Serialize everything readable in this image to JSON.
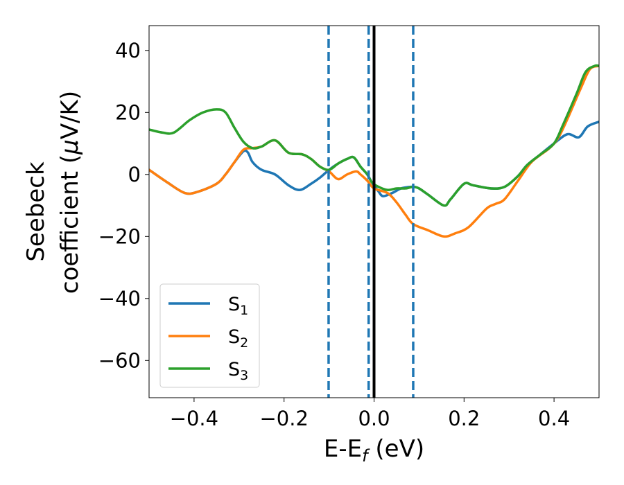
{
  "chart_data": {
    "type": "line",
    "xlabel": "E-E",
    "xlabel_sub": "f",
    "xlabel_unit": " (eV)",
    "ylabel_line1": "Seebeck",
    "ylabel_line2_prefix": "coefficient  (",
    "ylabel_mu": "μ",
    "ylabel_line2_suffix": "V/K)",
    "xlim": [
      -0.5,
      0.5
    ],
    "ylim": [
      -72,
      48
    ],
    "xticks": [
      -0.4,
      -0.2,
      0.0,
      0.2,
      0.4
    ],
    "xtick_labels": [
      "−0.4",
      "−0.2",
      "0.0",
      "0.2",
      "0.4"
    ],
    "yticks": [
      40,
      20,
      0,
      -20,
      -40,
      -60
    ],
    "ytick_labels": [
      "40",
      "20",
      "0",
      "−20",
      "−40",
      "−60"
    ],
    "grid": false,
    "legend_position": "lower-left",
    "vertical_lines": [
      {
        "x": 0.0,
        "style": "solid",
        "color": "#000000"
      },
      {
        "x": -0.101,
        "style": "dashed",
        "color": "#1f77b4"
      },
      {
        "x": -0.012,
        "style": "dashed",
        "color": "#1f77b4"
      },
      {
        "x": 0.087,
        "style": "dashed",
        "color": "#1f77b4"
      }
    ],
    "series": [
      {
        "name": "S",
        "sub": "1",
        "color": "#1f77b4",
        "points": [
          [
            -0.5,
            1.5
          ],
          [
            -0.46,
            -2.5
          ],
          [
            -0.42,
            -6
          ],
          [
            -0.39,
            -5.5
          ],
          [
            -0.35,
            -3
          ],
          [
            -0.33,
            0
          ],
          [
            -0.31,
            4
          ],
          [
            -0.29,
            7.5
          ],
          [
            -0.28,
            7
          ],
          [
            -0.27,
            4
          ],
          [
            -0.25,
            1.5
          ],
          [
            -0.22,
            0
          ],
          [
            -0.19,
            -3.5
          ],
          [
            -0.165,
            -5
          ],
          [
            -0.14,
            -3
          ],
          [
            -0.12,
            -1
          ],
          [
            -0.1,
            1.5
          ],
          [
            -0.08,
            3.5
          ],
          [
            -0.06,
            5
          ],
          [
            -0.045,
            5.5
          ],
          [
            -0.03,
            2.5
          ],
          [
            -0.015,
            0
          ],
          [
            -0.005,
            -2.5
          ],
          [
            0.01,
            -5.5
          ],
          [
            0.02,
            -7
          ],
          [
            0.04,
            -6
          ],
          [
            0.06,
            -4.5
          ],
          [
            0.08,
            -4
          ],
          [
            0.09,
            -4
          ],
          [
            0.1,
            -4.5
          ],
          [
            0.12,
            -6.5
          ],
          [
            0.155,
            -10
          ],
          [
            0.17,
            -8
          ],
          [
            0.2,
            -3
          ],
          [
            0.22,
            -3.5
          ],
          [
            0.26,
            -4.5
          ],
          [
            0.29,
            -4
          ],
          [
            0.32,
            -0.5
          ],
          [
            0.34,
            3
          ],
          [
            0.37,
            6.5
          ],
          [
            0.4,
            10
          ],
          [
            0.43,
            13
          ],
          [
            0.455,
            12
          ],
          [
            0.475,
            15.5
          ],
          [
            0.5,
            17
          ]
        ]
      },
      {
        "name": "S",
        "sub": "2",
        "color": "#ff7f0e",
        "points": [
          [
            -0.5,
            1.5
          ],
          [
            -0.46,
            -2.5
          ],
          [
            -0.42,
            -6
          ],
          [
            -0.39,
            -5.5
          ],
          [
            -0.35,
            -3
          ],
          [
            -0.33,
            0
          ],
          [
            -0.31,
            4
          ],
          [
            -0.29,
            8
          ],
          [
            -0.27,
            8.5
          ],
          [
            -0.25,
            9
          ],
          [
            -0.22,
            11
          ],
          [
            -0.19,
            7
          ],
          [
            -0.16,
            6.5
          ],
          [
            -0.14,
            5
          ],
          [
            -0.12,
            2.5
          ],
          [
            -0.1,
            1
          ],
          [
            -0.08,
            -1.5
          ],
          [
            -0.06,
            0
          ],
          [
            -0.04,
            1
          ],
          [
            -0.03,
            0
          ],
          [
            -0.015,
            -2
          ],
          [
            0.0,
            -4.5
          ],
          [
            0.03,
            -6
          ],
          [
            0.05,
            -9
          ],
          [
            0.07,
            -13
          ],
          [
            0.087,
            -16
          ],
          [
            0.12,
            -18
          ],
          [
            0.155,
            -20
          ],
          [
            0.18,
            -19
          ],
          [
            0.21,
            -17
          ],
          [
            0.25,
            -11
          ],
          [
            0.27,
            -9.5
          ],
          [
            0.29,
            -8
          ],
          [
            0.32,
            -2
          ],
          [
            0.35,
            4
          ],
          [
            0.39,
            8.5
          ],
          [
            0.41,
            12
          ],
          [
            0.43,
            18
          ],
          [
            0.46,
            28
          ],
          [
            0.48,
            34
          ],
          [
            0.5,
            35
          ]
        ]
      },
      {
        "name": "S",
        "sub": "3",
        "color": "#2ca02c",
        "points": [
          [
            -0.5,
            14.5
          ],
          [
            -0.47,
            13.5
          ],
          [
            -0.445,
            13.5
          ],
          [
            -0.41,
            17.5
          ],
          [
            -0.38,
            20
          ],
          [
            -0.35,
            21
          ],
          [
            -0.33,
            20
          ],
          [
            -0.31,
            15
          ],
          [
            -0.29,
            10.5
          ],
          [
            -0.27,
            8.5
          ],
          [
            -0.25,
            9
          ],
          [
            -0.22,
            11
          ],
          [
            -0.19,
            7
          ],
          [
            -0.16,
            6.5
          ],
          [
            -0.14,
            5
          ],
          [
            -0.12,
            2.5
          ],
          [
            -0.1,
            1.5
          ],
          [
            -0.08,
            3.5
          ],
          [
            -0.06,
            5
          ],
          [
            -0.045,
            5.5
          ],
          [
            -0.03,
            2.5
          ],
          [
            -0.015,
            0
          ],
          [
            -0.005,
            -2.5
          ],
          [
            0.01,
            -4
          ],
          [
            0.03,
            -5
          ],
          [
            0.05,
            -4.5
          ],
          [
            0.07,
            -4.5
          ],
          [
            0.087,
            -4
          ],
          [
            0.1,
            -4.5
          ],
          [
            0.12,
            -6.5
          ],
          [
            0.155,
            -10
          ],
          [
            0.17,
            -8
          ],
          [
            0.2,
            -3
          ],
          [
            0.22,
            -3.5
          ],
          [
            0.26,
            -4.5
          ],
          [
            0.29,
            -4
          ],
          [
            0.32,
            -0.5
          ],
          [
            0.34,
            3
          ],
          [
            0.37,
            6.5
          ],
          [
            0.4,
            10
          ],
          [
            0.42,
            16
          ],
          [
            0.45,
            26
          ],
          [
            0.47,
            33
          ],
          [
            0.49,
            35
          ],
          [
            0.5,
            35
          ]
        ]
      }
    ]
  }
}
